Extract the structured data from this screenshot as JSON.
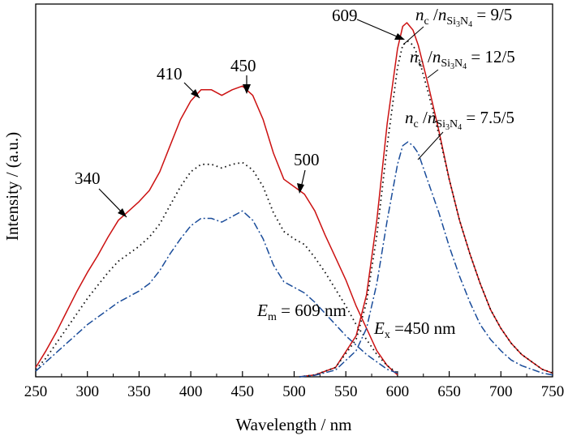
{
  "chart_data": {
    "type": "line",
    "xlabel": "Wavelength / nm",
    "ylabel": "Intensity / (a.u.)",
    "xlim": [
      250,
      750
    ],
    "ylim": [
      0,
      1.0
    ],
    "xticks": [
      "250",
      "300",
      "350",
      "400",
      "450",
      "500",
      "550",
      "600",
      "650",
      "700",
      "750"
    ],
    "grid": false,
    "legend": "none",
    "series": [
      {
        "group": "excitation",
        "color": "#cc1111",
        "style": "solid",
        "x": [
          250,
          260,
          270,
          280,
          290,
          300,
          310,
          320,
          330,
          340,
          350,
          360,
          370,
          380,
          390,
          400,
          410,
          420,
          430,
          440,
          450,
          460,
          470,
          480,
          490,
          500,
          510,
          520,
          530,
          540,
          550,
          560,
          570,
          580,
          590,
          600
        ],
        "y": [
          0.025,
          0.07,
          0.12,
          0.175,
          0.23,
          0.28,
          0.325,
          0.375,
          0.42,
          0.445,
          0.47,
          0.5,
          0.55,
          0.62,
          0.69,
          0.74,
          0.77,
          0.77,
          0.755,
          0.77,
          0.78,
          0.755,
          0.69,
          0.6,
          0.53,
          0.51,
          0.49,
          0.445,
          0.38,
          0.32,
          0.26,
          0.19,
          0.13,
          0.07,
          0.03,
          0.005
        ]
      },
      {
        "group": "excitation",
        "color": "#111111",
        "style": "dotted",
        "x": [
          250,
          260,
          270,
          280,
          290,
          300,
          310,
          320,
          330,
          340,
          350,
          360,
          370,
          380,
          390,
          400,
          410,
          420,
          430,
          440,
          450,
          460,
          470,
          480,
          490,
          500,
          510,
          520,
          530,
          540,
          550,
          560,
          570,
          580,
          590,
          600
        ],
        "y": [
          0.02,
          0.05,
          0.09,
          0.13,
          0.17,
          0.21,
          0.245,
          0.28,
          0.31,
          0.33,
          0.35,
          0.375,
          0.41,
          0.46,
          0.51,
          0.55,
          0.57,
          0.57,
          0.56,
          0.57,
          0.575,
          0.555,
          0.51,
          0.44,
          0.39,
          0.37,
          0.355,
          0.32,
          0.28,
          0.235,
          0.19,
          0.14,
          0.1,
          0.06,
          0.03,
          0.01
        ]
      },
      {
        "group": "excitation",
        "color": "#1a4c9a",
        "style": "dashdot",
        "x": [
          250,
          260,
          270,
          280,
          290,
          300,
          310,
          320,
          330,
          340,
          350,
          360,
          370,
          380,
          390,
          400,
          410,
          420,
          430,
          440,
          450,
          460,
          470,
          480,
          490,
          500,
          510,
          520,
          530,
          540,
          550,
          560,
          570,
          580,
          590,
          600
        ],
        "y": [
          0.015,
          0.04,
          0.065,
          0.09,
          0.115,
          0.14,
          0.16,
          0.18,
          0.2,
          0.215,
          0.23,
          0.25,
          0.285,
          0.33,
          0.37,
          0.405,
          0.425,
          0.425,
          0.415,
          0.43,
          0.445,
          0.42,
          0.37,
          0.3,
          0.255,
          0.24,
          0.225,
          0.2,
          0.17,
          0.14,
          0.11,
          0.085,
          0.06,
          0.04,
          0.02,
          0.01
        ]
      },
      {
        "group": "emission",
        "color": "#cc1111",
        "style": "solid",
        "x": [
          505,
          520,
          540,
          560,
          570,
          580,
          590,
          600,
          605,
          609,
          615,
          620,
          630,
          640,
          650,
          660,
          670,
          680,
          690,
          700,
          710,
          720,
          730,
          740,
          750
        ],
        "y": [
          0.0,
          0.005,
          0.025,
          0.11,
          0.22,
          0.42,
          0.68,
          0.88,
          0.94,
          0.95,
          0.93,
          0.89,
          0.78,
          0.66,
          0.53,
          0.42,
          0.33,
          0.25,
          0.18,
          0.13,
          0.09,
          0.06,
          0.04,
          0.02,
          0.01
        ]
      },
      {
        "group": "emission",
        "color": "#111111",
        "style": "dotted",
        "x": [
          505,
          520,
          540,
          560,
          570,
          580,
          590,
          600,
          605,
          610,
          615,
          620,
          630,
          640,
          650,
          660,
          670,
          680,
          690,
          700,
          710,
          720,
          730,
          740,
          750
        ],
        "y": [
          0.0,
          0.005,
          0.025,
          0.1,
          0.2,
          0.38,
          0.62,
          0.83,
          0.89,
          0.9,
          0.89,
          0.86,
          0.76,
          0.65,
          0.53,
          0.42,
          0.33,
          0.25,
          0.18,
          0.13,
          0.09,
          0.06,
          0.04,
          0.02,
          0.01
        ]
      },
      {
        "group": "emission",
        "color": "#1a4c9a",
        "style": "dashdot",
        "x": [
          505,
          520,
          540,
          560,
          570,
          580,
          590,
          600,
          605,
          610,
          615,
          620,
          630,
          640,
          650,
          660,
          670,
          680,
          690,
          700,
          710,
          720,
          730,
          740,
          750
        ],
        "y": [
          0.0,
          0.004,
          0.018,
          0.07,
          0.13,
          0.25,
          0.42,
          0.57,
          0.62,
          0.63,
          0.62,
          0.6,
          0.52,
          0.44,
          0.35,
          0.27,
          0.2,
          0.14,
          0.1,
          0.07,
          0.045,
          0.03,
          0.02,
          0.01,
          0.005
        ]
      }
    ]
  },
  "annotations": {
    "peak_340": "340",
    "peak_410": "410",
    "peak_450": "450",
    "peak_500": "500",
    "peak_609": "609",
    "ratio_red": {
      "n": "n",
      "c": "c",
      "slash": " /",
      "sub": "Si",
      "sub3": "3",
      "subN": "N",
      "sub4": "4",
      "value": " = 9/5"
    },
    "ratio_dot": {
      "n": "n",
      "c": "c",
      "slash": " /",
      "sub": "Si",
      "sub3": "3",
      "subN": "N",
      "sub4": "4",
      "value": " = 12/5"
    },
    "ratio_blue": {
      "n": "n",
      "c": "c",
      "slash": " /",
      "sub": "Si",
      "sub3": "3",
      "subN": "N",
      "sub4": "4",
      "value": " = 7.5/5"
    },
    "em_label": {
      "E": "E",
      "sub": "m",
      "value": " = 609 nm"
    },
    "ex_label": {
      "E": "E",
      "sub": "x",
      "value": " =450 nm"
    }
  }
}
